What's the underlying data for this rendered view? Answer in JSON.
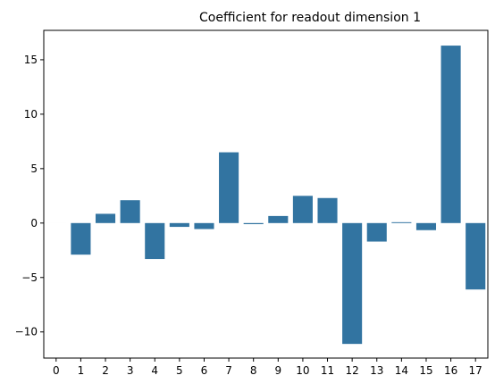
{
  "chart_data": {
    "type": "bar",
    "title": "Coefficient for readout dimension 1",
    "xlabel": "",
    "ylabel": "",
    "categories": [
      "0",
      "1",
      "2",
      "3",
      "4",
      "5",
      "6",
      "7",
      "8",
      "9",
      "10",
      "11",
      "12",
      "13",
      "14",
      "15",
      "16",
      "17"
    ],
    "values": [
      0,
      -2.9,
      0.85,
      2.1,
      -3.3,
      -0.35,
      -0.55,
      6.5,
      -0.1,
      0.65,
      2.5,
      2.3,
      -11.1,
      -1.7,
      0.08,
      -0.65,
      16.3,
      -6.1
    ],
    "ylim": [
      -12.4,
      17.7
    ],
    "yticks": [
      -10,
      -5,
      0,
      5,
      10,
      15
    ],
    "grid": false,
    "bar_color": "#3274a1"
  }
}
